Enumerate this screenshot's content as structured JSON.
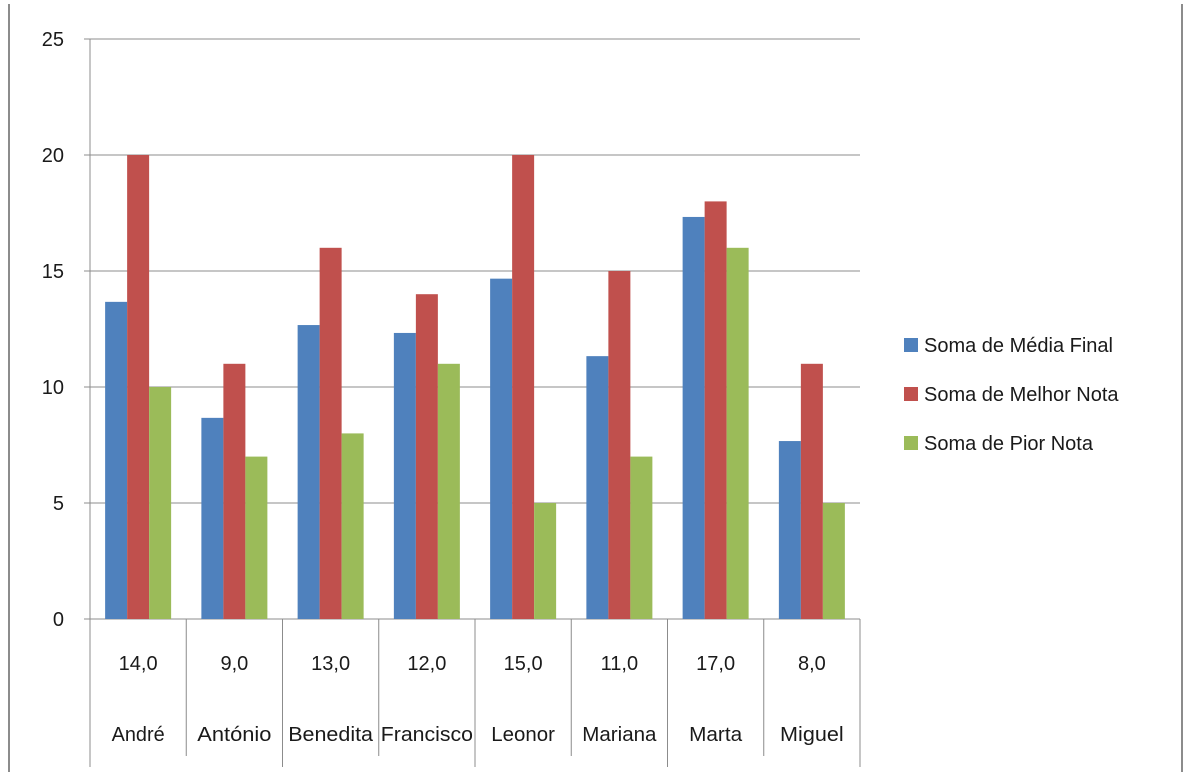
{
  "chart_data": {
    "type": "bar",
    "title": "",
    "xlabel": "",
    "ylabel": "",
    "ylim": [
      0,
      25
    ],
    "yticks": [
      0,
      5,
      10,
      15,
      20,
      25
    ],
    "grid": true,
    "legend_position": "right",
    "categories": [
      {
        "value": "14,0",
        "name": "André"
      },
      {
        "value": "9,0",
        "name": "António"
      },
      {
        "value": "13,0",
        "name": "Benedita"
      },
      {
        "value": "12,0",
        "name": "Francisco"
      },
      {
        "value": "15,0",
        "name": "Leonor"
      },
      {
        "value": "11,0",
        "name": "Mariana"
      },
      {
        "value": "17,0",
        "name": "Marta"
      },
      {
        "value": "8,0",
        "name": "Miguel"
      }
    ],
    "series": [
      {
        "name": "Soma de Média Final",
        "color": "#4F81BD",
        "values": [
          13.67,
          8.67,
          12.67,
          12.33,
          14.67,
          11.33,
          17.33,
          7.67
        ]
      },
      {
        "name": "Soma de Melhor Nota",
        "color": "#C0504D",
        "values": [
          20,
          11,
          16,
          14,
          20,
          15,
          18,
          11
        ]
      },
      {
        "name": "Soma de Pior Nota",
        "color": "#9BBB59",
        "values": [
          10,
          7,
          8,
          11,
          5,
          7,
          16,
          5
        ]
      }
    ]
  }
}
